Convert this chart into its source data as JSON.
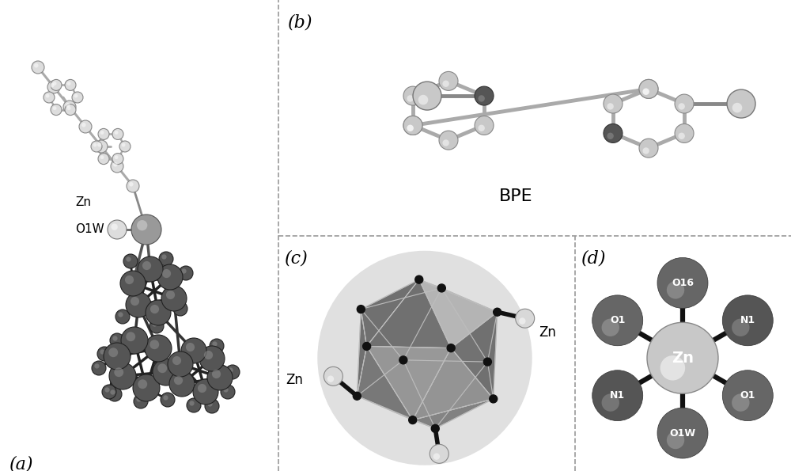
{
  "figure_width": 10.0,
  "figure_height": 5.95,
  "background_color": "#ffffff",
  "panel_labels": [
    "(a)",
    "(b)",
    "(c)",
    "(d)"
  ],
  "panel_label_fontsize": 16,
  "divider_color": "#999999",
  "divider_linewidth": 1.2,
  "bpe_label": "BPE",
  "bpe_label_fontsize": 16,
  "dark_atom_color": "#555555",
  "light_atom_color": "#cccccc",
  "bond_color": "#333333",
  "zn_atom_color": "#bbbbbb",
  "coord_dark_color": "#666666",
  "coord_light_color": "#aaaaaa"
}
